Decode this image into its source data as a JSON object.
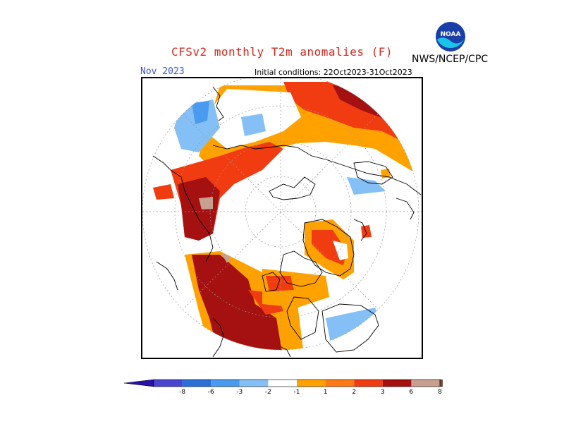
{
  "header": {
    "title": "CFSv2 monthly T2m anomalies (F)",
    "agency": "NWS/NCEP/CPC",
    "logo_text": "NOAA",
    "target_month": "Nov 2023",
    "initial_conditions": "Initial conditions: 22Oct2023-31Oct2023"
  },
  "colors": {
    "title": "#d8281e",
    "month": "#3b55d4"
  },
  "legend": {
    "bins": [
      {
        "color": "#2a0fa8"
      },
      {
        "color": "#4a44d0"
      },
      {
        "color": "#2a6fd8"
      },
      {
        "color": "#4a9bf0"
      },
      {
        "color": "#84bff6"
      },
      {
        "color": "#ffffff"
      },
      {
        "color": "#ffa200"
      },
      {
        "color": "#ff7a14"
      },
      {
        "color": "#f03c10"
      },
      {
        "color": "#a51010"
      },
      {
        "color": "#c8a090"
      },
      {
        "color": "#7a4a3a"
      }
    ],
    "tick_labels": [
      "-8",
      "-6",
      "-3",
      "-2",
      "-1",
      "1",
      "2",
      "3",
      "6",
      "8"
    ]
  }
}
